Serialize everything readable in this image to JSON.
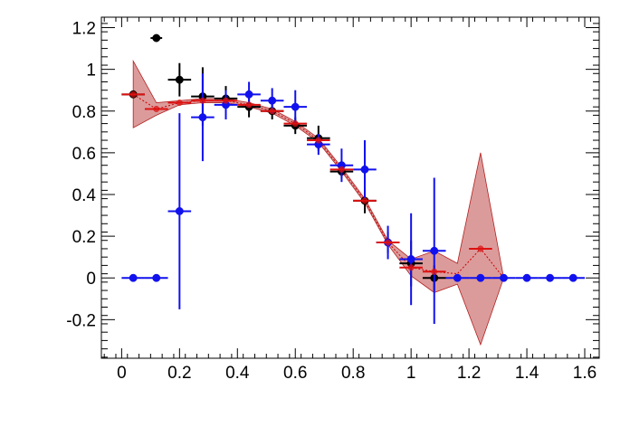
{
  "chart_data": {
    "type": "scatter",
    "title": "",
    "xlabel": "",
    "ylabel": "",
    "xlim": [
      -0.07,
      1.65
    ],
    "ylim": [
      -0.385,
      1.25
    ],
    "x_ticks": [
      0,
      0.2,
      0.4,
      0.6,
      0.8,
      1,
      1.2,
      1.4,
      1.6
    ],
    "x_tick_labels": [
      "0",
      "0.2",
      "0.4",
      "0.6",
      "0.8",
      "1",
      "1.2",
      "1.4",
      "1.6"
    ],
    "y_ticks": [
      -0.2,
      0,
      0.2,
      0.4,
      0.6,
      0.8,
      1,
      1.2
    ],
    "y_tick_labels": [
      "-0.2",
      "0",
      "0.2",
      "0.4",
      "0.6",
      "0.8",
      "1",
      "1.2"
    ],
    "grid": false,
    "band": {
      "color": "#b22222",
      "line_color": "#cc0000",
      "points": [
        {
          "x": 0.04,
          "y": 0.88,
          "err": 0.16
        },
        {
          "x": 0.12,
          "y": 0.81,
          "err": 0.03
        },
        {
          "x": 0.2,
          "y": 0.84,
          "err": 0.01
        },
        {
          "x": 0.28,
          "y": 0.85,
          "err": 0.01
        },
        {
          "x": 0.36,
          "y": 0.85,
          "err": 0.01
        },
        {
          "x": 0.44,
          "y": 0.83,
          "err": 0.01
        },
        {
          "x": 0.52,
          "y": 0.8,
          "err": 0.01
        },
        {
          "x": 0.6,
          "y": 0.74,
          "err": 0.01
        },
        {
          "x": 0.68,
          "y": 0.66,
          "err": 0.01
        },
        {
          "x": 0.76,
          "y": 0.52,
          "err": 0.01
        },
        {
          "x": 0.84,
          "y": 0.37,
          "err": 0.01
        },
        {
          "x": 0.92,
          "y": 0.17,
          "err": 0.01
        },
        {
          "x": 1.0,
          "y": 0.05,
          "err": 0.04
        },
        {
          "x": 1.08,
          "y": 0.03,
          "err": 0.1
        },
        {
          "x": 1.16,
          "y": 0.02,
          "err": 0.05
        },
        {
          "x": 1.24,
          "y": 0.14,
          "err": 0.46
        },
        {
          "x": 1.32,
          "y": 0.0,
          "err": 0.0
        }
      ]
    },
    "series": [
      {
        "color": "#000000",
        "marker": "circle",
        "points": [
          {
            "x": 0.04,
            "y": 0.88,
            "xerr": 0.04,
            "yerr": 0.0
          },
          {
            "x": 0.12,
            "y": 1.15,
            "xerr": 0.02,
            "yerr": 0.0
          },
          {
            "x": 0.2,
            "y": 0.95,
            "xerr": 0.04,
            "yerr": 0.08
          },
          {
            "x": 0.28,
            "y": 0.87,
            "xerr": 0.04,
            "yerr": 0.14
          },
          {
            "x": 0.36,
            "y": 0.86,
            "xerr": 0.04,
            "yerr": 0.06
          },
          {
            "x": 0.44,
            "y": 0.82,
            "xerr": 0.04,
            "yerr": 0.05
          },
          {
            "x": 0.52,
            "y": 0.8,
            "xerr": 0.04,
            "yerr": 0.04
          },
          {
            "x": 0.6,
            "y": 0.73,
            "xerr": 0.04,
            "yerr": 0.04
          },
          {
            "x": 0.68,
            "y": 0.67,
            "xerr": 0.04,
            "yerr": 0.06
          },
          {
            "x": 0.76,
            "y": 0.51,
            "xerr": 0.04,
            "yerr": 0.03
          },
          {
            "x": 0.84,
            "y": 0.37,
            "xerr": 0.04,
            "yerr": 0.06
          },
          {
            "x": 0.92,
            "y": 0.17,
            "xerr": 0.04,
            "yerr": 0.05
          },
          {
            "x": 1.0,
            "y": 0.07,
            "xerr": 0.04,
            "yerr": 0.11
          },
          {
            "x": 1.08,
            "y": 0.0,
            "xerr": 0.04,
            "yerr": 0.06
          }
        ]
      },
      {
        "color": "#1111ee",
        "marker": "circle",
        "points": [
          {
            "x": 0.04,
            "y": 0.0,
            "xerr": 0.04,
            "yerr": 0.0
          },
          {
            "x": 0.12,
            "y": 0.0,
            "xerr": 0.04,
            "yerr": 0.0
          },
          {
            "x": 0.2,
            "y": 0.32,
            "xerr": 0.04,
            "yerr": 0.47
          },
          {
            "x": 0.28,
            "y": 0.77,
            "xerr": 0.04,
            "yerr": 0.21
          },
          {
            "x": 0.36,
            "y": 0.83,
            "xerr": 0.04,
            "yerr": 0.07
          },
          {
            "x": 0.44,
            "y": 0.88,
            "xerr": 0.04,
            "yerr": 0.06
          },
          {
            "x": 0.52,
            "y": 0.85,
            "xerr": 0.04,
            "yerr": 0.06
          },
          {
            "x": 0.6,
            "y": 0.82,
            "xerr": 0.04,
            "yerr": 0.08
          },
          {
            "x": 0.68,
            "y": 0.64,
            "xerr": 0.04,
            "yerr": 0.05
          },
          {
            "x": 0.76,
            "y": 0.54,
            "xerr": 0.04,
            "yerr": 0.08
          },
          {
            "x": 0.84,
            "y": 0.52,
            "xerr": 0.04,
            "yerr": 0.14
          },
          {
            "x": 0.92,
            "y": 0.17,
            "xerr": 0.04,
            "yerr": 0.08
          },
          {
            "x": 1.0,
            "y": 0.09,
            "xerr": 0.04,
            "yerr": 0.22
          },
          {
            "x": 1.08,
            "y": 0.13,
            "xerr": 0.04,
            "yerr": 0.35
          },
          {
            "x": 1.16,
            "y": 0.0,
            "xerr": 0.04,
            "yerr": 0.0
          },
          {
            "x": 1.24,
            "y": 0.0,
            "xerr": 0.04,
            "yerr": 0.0
          },
          {
            "x": 1.32,
            "y": 0.0,
            "xerr": 0.04,
            "yerr": 0.0
          },
          {
            "x": 1.4,
            "y": 0.0,
            "xerr": 0.04,
            "yerr": 0.0
          },
          {
            "x": 1.48,
            "y": 0.0,
            "xerr": 0.04,
            "yerr": 0.0
          },
          {
            "x": 1.56,
            "y": 0.0,
            "xerr": 0.04,
            "yerr": 0.0
          }
        ]
      },
      {
        "color": "#dd1111",
        "marker": "circle",
        "points": [
          {
            "x": 0.04,
            "y": 0.88,
            "xerr": 0.04,
            "yerr": 0.0
          },
          {
            "x": 0.12,
            "y": 0.81,
            "xerr": 0.04,
            "yerr": 0.0
          },
          {
            "x": 0.2,
            "y": 0.84,
            "xerr": 0.04,
            "yerr": 0.0
          },
          {
            "x": 0.28,
            "y": 0.85,
            "xerr": 0.04,
            "yerr": 0.0
          },
          {
            "x": 0.36,
            "y": 0.85,
            "xerr": 0.04,
            "yerr": 0.0
          },
          {
            "x": 0.44,
            "y": 0.83,
            "xerr": 0.04,
            "yerr": 0.0
          },
          {
            "x": 0.52,
            "y": 0.8,
            "xerr": 0.04,
            "yerr": 0.0
          },
          {
            "x": 0.6,
            "y": 0.74,
            "xerr": 0.04,
            "yerr": 0.0
          },
          {
            "x": 0.68,
            "y": 0.66,
            "xerr": 0.04,
            "yerr": 0.0
          },
          {
            "x": 0.76,
            "y": 0.52,
            "xerr": 0.04,
            "yerr": 0.0
          },
          {
            "x": 0.84,
            "y": 0.37,
            "xerr": 0.04,
            "yerr": 0.0
          },
          {
            "x": 0.92,
            "y": 0.17,
            "xerr": 0.04,
            "yerr": 0.0
          },
          {
            "x": 1.0,
            "y": 0.05,
            "xerr": 0.04,
            "yerr": 0.0
          },
          {
            "x": 1.08,
            "y": 0.03,
            "xerr": 0.04,
            "yerr": 0.0
          },
          {
            "x": 1.24,
            "y": 0.14,
            "xerr": 0.04,
            "yerr": 0.0
          }
        ]
      }
    ]
  }
}
